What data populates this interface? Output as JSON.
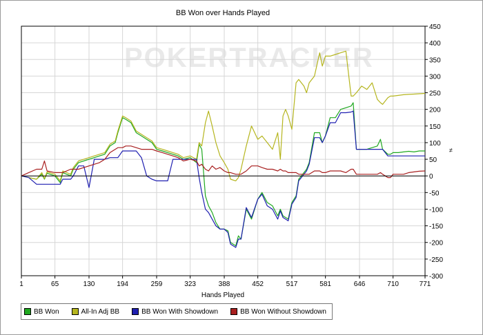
{
  "watermark": "POKERTRACKER",
  "chart_data": {
    "type": "line",
    "title": "BB Won over Hands Played",
    "xlabel": "Hands Played",
    "ylabel": "",
    "xlim": [
      1,
      771
    ],
    "ylim": [
      -300,
      450
    ],
    "x_ticks": [
      1,
      65,
      130,
      194,
      259,
      323,
      388,
      452,
      517,
      581,
      646,
      710,
      771
    ],
    "y_ticks": [
      -300,
      -250,
      -200,
      -150,
      -100,
      -50,
      0,
      50,
      100,
      150,
      200,
      250,
      300,
      350,
      400,
      450
    ],
    "grid": true,
    "legend_position": "bottom",
    "series": [
      {
        "name": "BB Won",
        "color": "#1fa81f",
        "x": [
          1,
          15,
          30,
          40,
          45,
          50,
          65,
          75,
          80,
          95,
          100,
          110,
          120,
          130,
          140,
          150,
          160,
          170,
          180,
          185,
          194,
          200,
          210,
          220,
          230,
          240,
          250,
          259,
          270,
          280,
          290,
          300,
          310,
          323,
          335,
          340,
          345,
          352,
          358,
          365,
          372,
          380,
          388,
          395,
          400,
          410,
          415,
          420,
          430,
          440,
          452,
          460,
          470,
          480,
          490,
          495,
          500,
          505,
          510,
          517,
          525,
          530,
          540,
          545,
          550,
          560,
          570,
          575,
          581,
          590,
          600,
          610,
          620,
          630,
          634,
          640,
          650,
          660,
          670,
          680,
          686,
          690,
          700,
          705,
          710,
          720,
          730,
          740,
          750,
          760,
          771
        ],
        "y": [
          0,
          -5,
          -10,
          5,
          -10,
          8,
          0,
          -20,
          10,
          0,
          20,
          40,
          45,
          50,
          55,
          60,
          65,
          90,
          100,
          130,
          175,
          170,
          160,
          130,
          120,
          110,
          100,
          80,
          75,
          70,
          65,
          60,
          50,
          55,
          40,
          95,
          80,
          -60,
          -90,
          -110,
          -140,
          -160,
          -160,
          -165,
          -200,
          -210,
          -180,
          -190,
          -100,
          -130,
          -70,
          -50,
          -80,
          -90,
          -120,
          -100,
          -120,
          -125,
          -130,
          -80,
          -60,
          -10,
          10,
          20,
          40,
          130,
          130,
          100,
          120,
          175,
          175,
          200,
          205,
          210,
          220,
          80,
          80,
          80,
          85,
          90,
          110,
          80,
          65,
          65,
          70,
          70,
          72,
          74,
          72,
          75,
          75
        ]
      },
      {
        "name": "All-In Adj BB",
        "color": "#b5b51e",
        "x": [
          1,
          15,
          30,
          40,
          45,
          50,
          65,
          75,
          80,
          95,
          100,
          110,
          120,
          130,
          140,
          150,
          160,
          170,
          180,
          185,
          194,
          200,
          210,
          220,
          230,
          240,
          250,
          259,
          270,
          280,
          290,
          300,
          310,
          323,
          335,
          340,
          345,
          352,
          358,
          365,
          372,
          380,
          388,
          395,
          400,
          410,
          415,
          420,
          430,
          440,
          452,
          460,
          470,
          480,
          490,
          495,
          500,
          505,
          510,
          517,
          525,
          530,
          540,
          545,
          550,
          560,
          570,
          575,
          581,
          590,
          600,
          610,
          620,
          630,
          634,
          640,
          650,
          660,
          670,
          680,
          686,
          690,
          700,
          705,
          710,
          720,
          730,
          740,
          750,
          760,
          771
        ],
        "y": [
          0,
          -5,
          -10,
          10,
          -8,
          12,
          5,
          -15,
          15,
          5,
          25,
          45,
          50,
          55,
          60,
          65,
          70,
          95,
          105,
          135,
          180,
          175,
          165,
          135,
          125,
          115,
          105,
          85,
          80,
          75,
          70,
          65,
          55,
          60,
          50,
          100,
          90,
          160,
          195,
          150,
          100,
          60,
          40,
          20,
          -10,
          -15,
          -5,
          20,
          90,
          150,
          110,
          120,
          100,
          80,
          130,
          50,
          180,
          200,
          180,
          140,
          280,
          290,
          270,
          250,
          280,
          300,
          370,
          330,
          360,
          360,
          365,
          370,
          375,
          240,
          240,
          250,
          270,
          260,
          280,
          230,
          220,
          215,
          235,
          240,
          240,
          242,
          244,
          245,
          246,
          247,
          248
        ]
      },
      {
        "name": "BB Won With Showdown",
        "color": "#1f1fb0",
        "x": [
          1,
          15,
          30,
          40,
          45,
          50,
          65,
          75,
          80,
          95,
          100,
          110,
          120,
          130,
          140,
          150,
          160,
          170,
          180,
          185,
          194,
          200,
          210,
          220,
          230,
          240,
          250,
          259,
          270,
          280,
          290,
          300,
          310,
          323,
          335,
          340,
          345,
          352,
          358,
          365,
          372,
          380,
          388,
          395,
          400,
          410,
          415,
          420,
          430,
          440,
          452,
          460,
          470,
          480,
          490,
          495,
          500,
          505,
          510,
          517,
          525,
          530,
          540,
          545,
          550,
          560,
          570,
          575,
          581,
          590,
          600,
          610,
          620,
          630,
          634,
          640,
          650,
          660,
          670,
          680,
          686,
          690,
          700,
          705,
          710,
          720,
          730,
          740,
          750,
          760,
          771
        ],
        "y": [
          0,
          -5,
          -25,
          -25,
          -25,
          -25,
          -25,
          -25,
          -10,
          -10,
          0,
          30,
          30,
          -35,
          50,
          50,
          50,
          55,
          55,
          55,
          75,
          75,
          75,
          75,
          55,
          0,
          -10,
          -15,
          -15,
          -15,
          50,
          50,
          50,
          50,
          50,
          -5,
          -50,
          -100,
          -110,
          -130,
          -150,
          -160,
          -160,
          -170,
          -205,
          -215,
          -190,
          -190,
          -95,
          -125,
          -70,
          -55,
          -90,
          -100,
          -130,
          -105,
          -125,
          -130,
          -135,
          -85,
          -65,
          -15,
          5,
          15,
          35,
          115,
          115,
          100,
          120,
          160,
          160,
          190,
          190,
          192,
          195,
          80,
          80,
          80,
          80,
          80,
          80,
          80,
          60,
          60,
          60,
          60,
          60,
          60,
          60,
          60,
          60
        ]
      },
      {
        "name": "BB Won Without Showdown",
        "color": "#a81f1f",
        "x": [
          1,
          15,
          30,
          40,
          45,
          50,
          65,
          75,
          80,
          95,
          100,
          110,
          120,
          130,
          140,
          150,
          160,
          170,
          180,
          185,
          194,
          200,
          210,
          220,
          230,
          240,
          250,
          259,
          270,
          280,
          290,
          300,
          310,
          323,
          335,
          340,
          345,
          352,
          358,
          365,
          372,
          380,
          388,
          395,
          400,
          410,
          415,
          420,
          430,
          440,
          452,
          460,
          470,
          480,
          490,
          495,
          500,
          505,
          510,
          517,
          525,
          530,
          540,
          545,
          550,
          560,
          570,
          575,
          581,
          590,
          600,
          610,
          620,
          630,
          634,
          640,
          650,
          660,
          670,
          680,
          686,
          690,
          700,
          705,
          710,
          720,
          730,
          740,
          750,
          760,
          771
        ],
        "y": [
          0,
          10,
          20,
          20,
          45,
          15,
          10,
          10,
          10,
          20,
          20,
          20,
          25,
          30,
          35,
          40,
          50,
          70,
          80,
          85,
          85,
          90,
          90,
          85,
          80,
          80,
          80,
          75,
          70,
          65,
          60,
          55,
          45,
          50,
          45,
          30,
          35,
          20,
          15,
          30,
          20,
          25,
          15,
          10,
          10,
          5,
          5,
          5,
          15,
          30,
          30,
          25,
          20,
          20,
          15,
          20,
          15,
          15,
          10,
          10,
          10,
          5,
          5,
          5,
          5,
          15,
          15,
          10,
          10,
          15,
          15,
          15,
          10,
          20,
          20,
          5,
          5,
          5,
          5,
          5,
          10,
          5,
          -5,
          -5,
          5,
          5,
          5,
          10,
          12,
          14,
          15
        ]
      }
    ]
  }
}
